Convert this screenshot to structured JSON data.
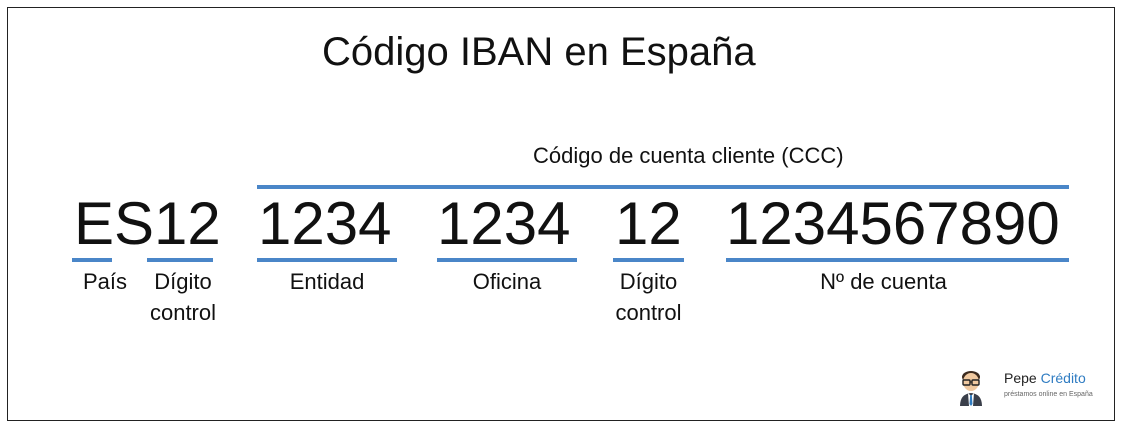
{
  "title": "Código IBAN en España",
  "ccc_label": "Código de cuenta cliente (CCC)",
  "segments": {
    "country": "ES",
    "check": "12",
    "entity": "1234",
    "office": "1234",
    "control": "12",
    "account": "1234567890"
  },
  "labels": {
    "pais": "País",
    "digito_control_1": "Dígito",
    "digito_control_2": "control",
    "entidad": "Entidad",
    "oficina": "Oficina",
    "digito_control_b1": "Dígito",
    "digito_control_b2": "control",
    "cuenta": "Nº de cuenta"
  },
  "logo": {
    "brand_a": "Pepe",
    "brand_b": "Crédito",
    "tagline": "préstamos online en España"
  },
  "colors": {
    "accent": "#4a86c8",
    "brand_blue": "#2f7cc2"
  }
}
